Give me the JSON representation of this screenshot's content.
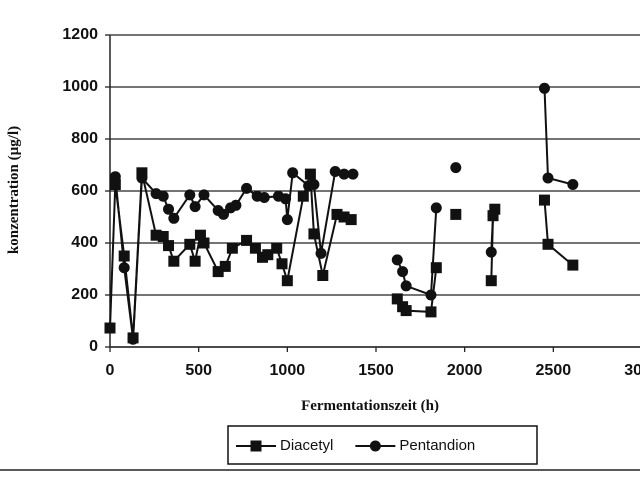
{
  "chart_data": {
    "type": "line",
    "y_label": "konzentration (µg/l)",
    "x_label": "Fermentationszeit (h)",
    "xlim": [
      0,
      3000
    ],
    "xticks": [
      0,
      500,
      1000,
      1500,
      2000,
      2500,
      3000
    ],
    "ylim": [
      0,
      1200
    ],
    "yticks": [
      0,
      200,
      400,
      600,
      800,
      1000,
      1200
    ],
    "grid": true,
    "legend": "bottom",
    "series": [
      {
        "name": "Diacetyl",
        "color": "#111111",
        "marker": "square",
        "x": [
          0,
          30,
          80,
          130,
          180,
          260,
          300,
          330,
          360,
          450,
          480,
          510,
          530,
          610,
          650,
          690,
          770,
          820,
          860,
          890,
          940,
          970,
          1000,
          1090,
          1130,
          1150,
          1200,
          1280,
          1320,
          1360,
          null,
          1620,
          1650,
          1670,
          1810,
          1840,
          null,
          1950,
          null,
          2150,
          2160,
          2170,
          null,
          2450,
          2470,
          2610
        ],
        "values": [
          73,
          625,
          350,
          35,
          670,
          430,
          425,
          390,
          330,
          395,
          330,
          430,
          400,
          290,
          310,
          380,
          410,
          380,
          345,
          355,
          380,
          320,
          255,
          580,
          665,
          435,
          275,
          510,
          500,
          490,
          null,
          185,
          155,
          140,
          135,
          305,
          null,
          510,
          null,
          255,
          505,
          530,
          null,
          565,
          395,
          315
        ]
      },
      {
        "name": "Pentandion",
        "color": "#111111",
        "marker": "circle",
        "x": [
          30,
          80,
          130,
          180,
          260,
          300,
          330,
          360,
          450,
          480,
          530,
          610,
          640,
          680,
          710,
          770,
          830,
          870,
          950,
          990,
          1000,
          1030,
          1120,
          1150,
          1190,
          1270,
          1320,
          1370,
          null,
          1620,
          1650,
          1670,
          1810,
          1840,
          null,
          1950,
          null,
          2150,
          2160,
          null,
          2450,
          2470,
          2610
        ],
        "values": [
          655,
          305,
          30,
          650,
          590,
          580,
          530,
          495,
          585,
          540,
          585,
          525,
          510,
          535,
          545,
          610,
          580,
          575,
          580,
          570,
          490,
          670,
          620,
          625,
          360,
          675,
          665,
          665,
          null,
          335,
          290,
          235,
          200,
          535,
          null,
          690,
          null,
          365,
          505,
          null,
          995,
          650,
          625
        ]
      }
    ]
  }
}
